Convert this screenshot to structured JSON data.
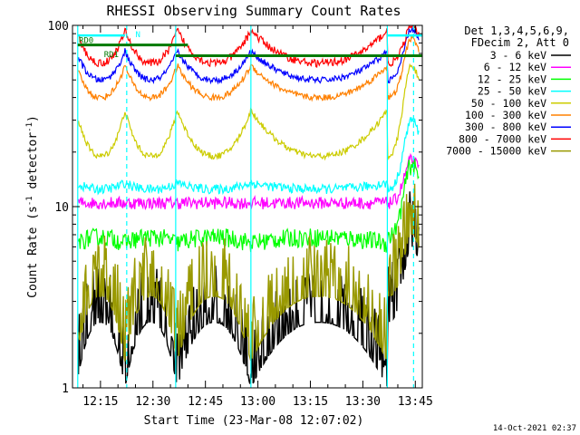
{
  "chart_data": {
    "type": "line",
    "title": "RHESSI Observing Summary Count Rates",
    "xlabel": "Start Time (23-Mar-08 12:07:02)",
    "ylabel_main": "Count Rate (s",
    "ylabel_sup": "-1",
    "ylabel_mid": " detector",
    "ylabel_sup2": "-1",
    "ylabel_end": ")",
    "y_scale": "log",
    "ylim": [
      1,
      100
    ],
    "xlim_min": [
      7,
      107
    ],
    "x_ticks": [
      {
        "label": "12:15",
        "min": 15
      },
      {
        "label": "12:30",
        "min": 30
      },
      {
        "label": "12:45",
        "min": 45
      },
      {
        "label": "13:00",
        "min": 60
      },
      {
        "label": "13:15",
        "min": 75
      },
      {
        "label": "13:30",
        "min": 90
      },
      {
        "label": "13:45",
        "min": 105
      }
    ],
    "y_ticks": [
      {
        "label": "1",
        "value": 1
      },
      {
        "label": "10",
        "value": 10
      },
      {
        "label": "100",
        "value": 100
      }
    ],
    "legend_header": [
      "Det 1,3,4,5,6,9,",
      "FDecim 2, Att 0"
    ],
    "series": [
      {
        "name": "3 - 6 keV",
        "color": "#000000"
      },
      {
        "name": "6 - 12 keV",
        "color": "#ff00ff"
      },
      {
        "name": "12 - 25 keV",
        "color": "#00ff00"
      },
      {
        "name": "25 - 50 keV",
        "color": "#00ffff"
      },
      {
        "name": "50 - 100 keV",
        "color": "#cccc00"
      },
      {
        "name": "100 - 300 keV",
        "color": "#ff8000"
      },
      {
        "name": "300 - 800 keV",
        "color": "#0000ff"
      },
      {
        "name": "800 - 7000 keV",
        "color": "#ff0000"
      },
      {
        "name": "7000 - 15000 keV",
        "color": "#999900"
      }
    ],
    "flags": [
      {
        "label": "RD0",
        "color": "#007a00"
      },
      {
        "label": "RD1",
        "color": "#007a00"
      },
      {
        "label": "N",
        "color": "#00ffff"
      }
    ],
    "vertical_markers_min": [
      8.5,
      22.5,
      36.5,
      58,
      97,
      104.5
    ],
    "dashed_markers_min": [
      22.5,
      104.5
    ]
  },
  "footer": {
    "timestamp": "14-Oct-2021 02:37"
  }
}
